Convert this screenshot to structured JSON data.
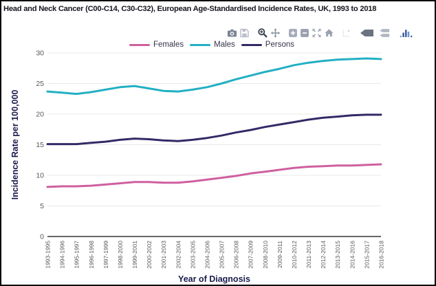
{
  "title": "Head and Neck Cancer (C00-C14, C30-C32), European Age-Standardised Incidence Rates, UK, 1993 to 2018",
  "colors": {
    "females": "#cf5f9e",
    "males": "#22afc4",
    "persons": "#312a66",
    "grid": "#e8e8e8",
    "axis_line": "#333333",
    "tick_text": "#595959",
    "axis_title_text": "#1b1b4d",
    "title_text": "#16161e",
    "legend_text": "#33334a",
    "plotly_logo_blue": "#36559c",
    "plotly_logo_blue_light": "#6b8fd0"
  },
  "modebar": {
    "buttons": [
      {
        "name": "camera",
        "color": "#7d8494",
        "group_start": false
      },
      {
        "name": "save",
        "color": "#b9bdc9",
        "group_start": false
      },
      {
        "name": "zoom",
        "color": "#3f4756",
        "group_start": true
      },
      {
        "name": "pan",
        "color": "#8b92a2",
        "group_start": false
      },
      {
        "name": "zoom-in",
        "color": "#a6abba",
        "group_start": true
      },
      {
        "name": "zoom-out",
        "color": "#9ba1b0",
        "group_start": false
      },
      {
        "name": "autoscale",
        "color": "#a6abba",
        "group_start": false
      },
      {
        "name": "home",
        "color": "#9ba1b0",
        "group_start": false
      },
      {
        "name": "spikelines",
        "color": "#d4d7de",
        "group_start": true
      },
      {
        "name": "hover-closest",
        "color": "#6a7380",
        "group_start": true
      },
      {
        "name": "hover-compare",
        "color": "#b2b7c3",
        "group_start": false
      },
      {
        "name": "plotly-logo",
        "color": "#36559c",
        "group_start": true
      }
    ]
  },
  "chart_data": {
    "type": "line",
    "title": "Head and Neck Cancer (C00-C14, C30-C32), European Age-Standardised Incidence Rates, UK, 1993 to 2018",
    "xlabel": "Year of Diagnosis",
    "ylabel": "Incidence Rate per 100,000",
    "ylim": [
      0,
      30
    ],
    "yticks": [
      0,
      5,
      10,
      15,
      20,
      25,
      30
    ],
    "grid": true,
    "legend_position": "top",
    "categories": [
      "1993-1995",
      "1994-1996",
      "1995-1997",
      "1996-1998",
      "1997-1999",
      "1998-2000",
      "1999-2001",
      "2000-2002",
      "2001-2003",
      "2002-2004",
      "2003-2005",
      "2004-2006",
      "2005-2007",
      "2006-2008",
      "2007-2009",
      "2008-2010",
      "2009-2011",
      "2010-2012",
      "2011-2013",
      "2012-2014",
      "2013-2015",
      "2014-2016",
      "2015-2017",
      "2016-2018"
    ],
    "series": [
      {
        "name": "Females",
        "color": "#cf5f9e",
        "values": [
          8.1,
          8.2,
          8.2,
          8.3,
          8.5,
          8.7,
          8.9,
          8.9,
          8.8,
          8.8,
          9.0,
          9.3,
          9.6,
          9.9,
          10.3,
          10.6,
          10.9,
          11.2,
          11.4,
          11.5,
          11.6,
          11.6,
          11.7,
          11.8
        ]
      },
      {
        "name": "Males",
        "color": "#22afc4",
        "values": [
          23.7,
          23.5,
          23.3,
          23.6,
          24.0,
          24.4,
          24.6,
          24.2,
          23.8,
          23.7,
          24.0,
          24.4,
          25.0,
          25.7,
          26.3,
          26.9,
          27.4,
          28.0,
          28.4,
          28.7,
          28.9,
          29.0,
          29.1,
          29.0
        ]
      },
      {
        "name": "Persons",
        "color": "#312a66",
        "values": [
          15.1,
          15.1,
          15.1,
          15.3,
          15.5,
          15.8,
          16.0,
          15.9,
          15.7,
          15.6,
          15.8,
          16.1,
          16.5,
          17.0,
          17.4,
          17.9,
          18.3,
          18.7,
          19.1,
          19.4,
          19.6,
          19.8,
          19.9,
          19.9
        ]
      }
    ]
  }
}
